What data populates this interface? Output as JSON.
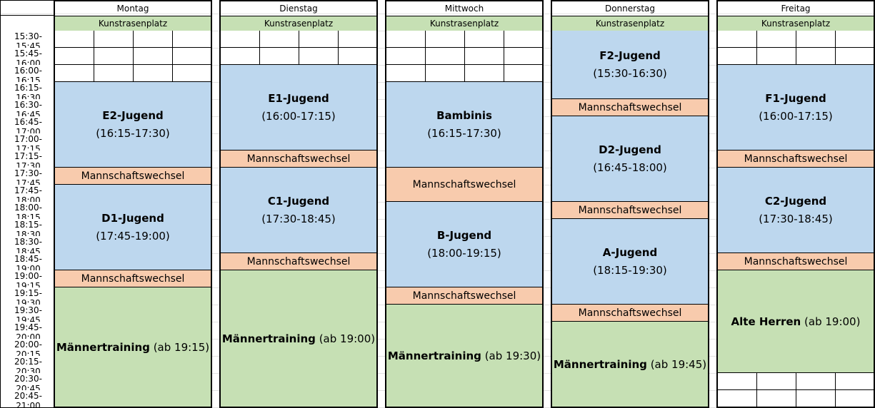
{
  "times": [
    "15:30-15:45",
    "15:45-16:00",
    "16:00-16:15",
    "16:15-16:30",
    "16:30-16:45",
    "16:45-17:00",
    "17:00-17:15",
    "17:15-17:30",
    "17:30-17:45",
    "17:45-18:00",
    "18:00-18:15",
    "18:15-18:30",
    "18:30-18:45",
    "18:45-19:00",
    "19:00-19:15",
    "19:15-19:30",
    "19:30-19:45",
    "19:45-20:00",
    "20:00-20:15",
    "20:15-20:30",
    "20:30-20:45",
    "20:45-21:00"
  ],
  "colors": {
    "team": "#bdd7ee",
    "change": "#f8cbad",
    "men": "#c6e0b4"
  },
  "days": [
    {
      "name": "Montag",
      "field": "Kunstrasenplatz",
      "blocks": [
        {
          "type": "empty",
          "start": 0,
          "rows": 3
        },
        {
          "type": "team",
          "title": "E2-Jugend",
          "time": "(16:15-17:30)",
          "start": 3,
          "rows": 5
        },
        {
          "type": "change",
          "title": "Mannschaftswechsel",
          "start": 8,
          "rows": 1
        },
        {
          "type": "team",
          "title": "D1-Jugend",
          "time": "(17:45-19:00)",
          "start": 9,
          "rows": 5
        },
        {
          "type": "change",
          "title": "Mannschaftswechsel",
          "start": 14,
          "rows": 1
        },
        {
          "type": "men",
          "title": "Männertraining",
          "time": "(ab 19:15)",
          "start": 15,
          "rows": 7
        }
      ]
    },
    {
      "name": "Dienstag",
      "field": "Kunstrasenplatz",
      "blocks": [
        {
          "type": "empty",
          "start": 0,
          "rows": 2
        },
        {
          "type": "team",
          "title": "E1-Jugend",
          "time": "(16:00-17:15)",
          "start": 2,
          "rows": 5
        },
        {
          "type": "change",
          "title": "Mannschaftswechsel",
          "start": 7,
          "rows": 1
        },
        {
          "type": "team",
          "title": "C1-Jugend",
          "time": "(17:30-18:45)",
          "start": 8,
          "rows": 5
        },
        {
          "type": "change",
          "title": "Mannschaftswechsel",
          "start": 13,
          "rows": 1
        },
        {
          "type": "men",
          "title": "Männertraining",
          "time": "(ab 19:00)",
          "start": 14,
          "rows": 8
        }
      ]
    },
    {
      "name": "Mittwoch",
      "field": "Kunstrasenplatz",
      "blocks": [
        {
          "type": "empty",
          "start": 0,
          "rows": 3
        },
        {
          "type": "team",
          "title": "Bambinis",
          "time": "(16:15-17:30)",
          "start": 3,
          "rows": 5
        },
        {
          "type": "change",
          "title": "Mannschaftswechsel",
          "start": 8,
          "rows": 2
        },
        {
          "type": "team",
          "title": "B-Jugend",
          "time": "(18:00-19:15)",
          "start": 10,
          "rows": 5
        },
        {
          "type": "change",
          "title": "Mannschaftswechsel",
          "start": 15,
          "rows": 1
        },
        {
          "type": "men",
          "title": "Männertraining",
          "time": "(ab 19:30)",
          "start": 16,
          "rows": 6
        }
      ]
    },
    {
      "name": "Donnerstag",
      "field": "Kunstrasenplatz",
      "blocks": [
        {
          "type": "team",
          "title": "F2-Jugend",
          "time": "(15:30-16:30)",
          "start": 0,
          "rows": 4
        },
        {
          "type": "change",
          "title": "Mannschaftswechsel",
          "start": 4,
          "rows": 1
        },
        {
          "type": "team",
          "title": "D2-Jugend",
          "time": "(16:45-18:00)",
          "start": 5,
          "rows": 5
        },
        {
          "type": "change",
          "title": "Mannschaftswechsel",
          "start": 10,
          "rows": 1
        },
        {
          "type": "team",
          "title": "A-Jugend",
          "time": "(18:15-19:30)",
          "start": 11,
          "rows": 5
        },
        {
          "type": "change",
          "title": "Mannschaftswechsel",
          "start": 16,
          "rows": 1
        },
        {
          "type": "men",
          "title": "Männertraining",
          "time": "(ab 19:45)",
          "start": 17,
          "rows": 5
        }
      ]
    },
    {
      "name": "Freitag",
      "field": "Kunstrasenplatz",
      "blocks": [
        {
          "type": "empty",
          "start": 0,
          "rows": 2
        },
        {
          "type": "team",
          "title": "F1-Jugend",
          "time": "(16:00-17:15)",
          "start": 2,
          "rows": 5
        },
        {
          "type": "change",
          "title": "Mannschaftswechsel",
          "start": 7,
          "rows": 1
        },
        {
          "type": "team",
          "title": "C2-Jugend",
          "time": "(17:30-18:45)",
          "start": 8,
          "rows": 5
        },
        {
          "type": "change",
          "title": "Mannschaftswechsel",
          "start": 13,
          "rows": 1
        },
        {
          "type": "men",
          "title": "Alte Herren",
          "time": "(ab 19:00)",
          "start": 14,
          "rows": 6
        },
        {
          "type": "empty",
          "start": 20,
          "rows": 2
        }
      ]
    }
  ]
}
